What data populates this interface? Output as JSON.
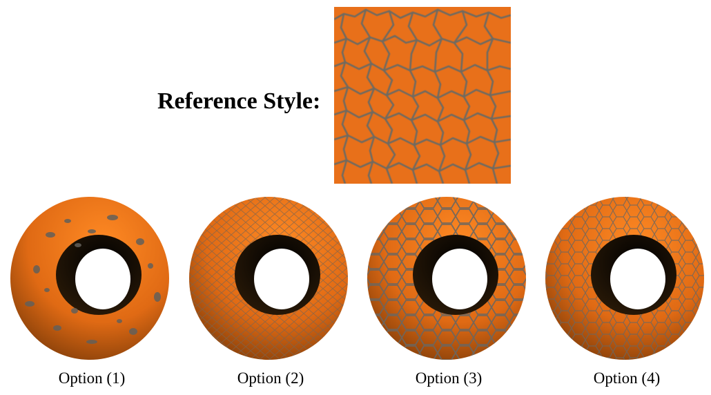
{
  "reference": {
    "label": "Reference Style:"
  },
  "colors": {
    "orange": "#e8701a",
    "crack": "#6a6a66",
    "dark": "#1a1208"
  },
  "options": [
    {
      "label": "Option (1)",
      "icon": "blotchy-torus-icon"
    },
    {
      "label": "Option (2)",
      "icon": "fine-voronoi-torus-icon"
    },
    {
      "label": "Option (3)",
      "icon": "matching-voronoi-torus-icon"
    },
    {
      "label": "Option (4)",
      "icon": "medium-voronoi-torus-icon"
    }
  ]
}
